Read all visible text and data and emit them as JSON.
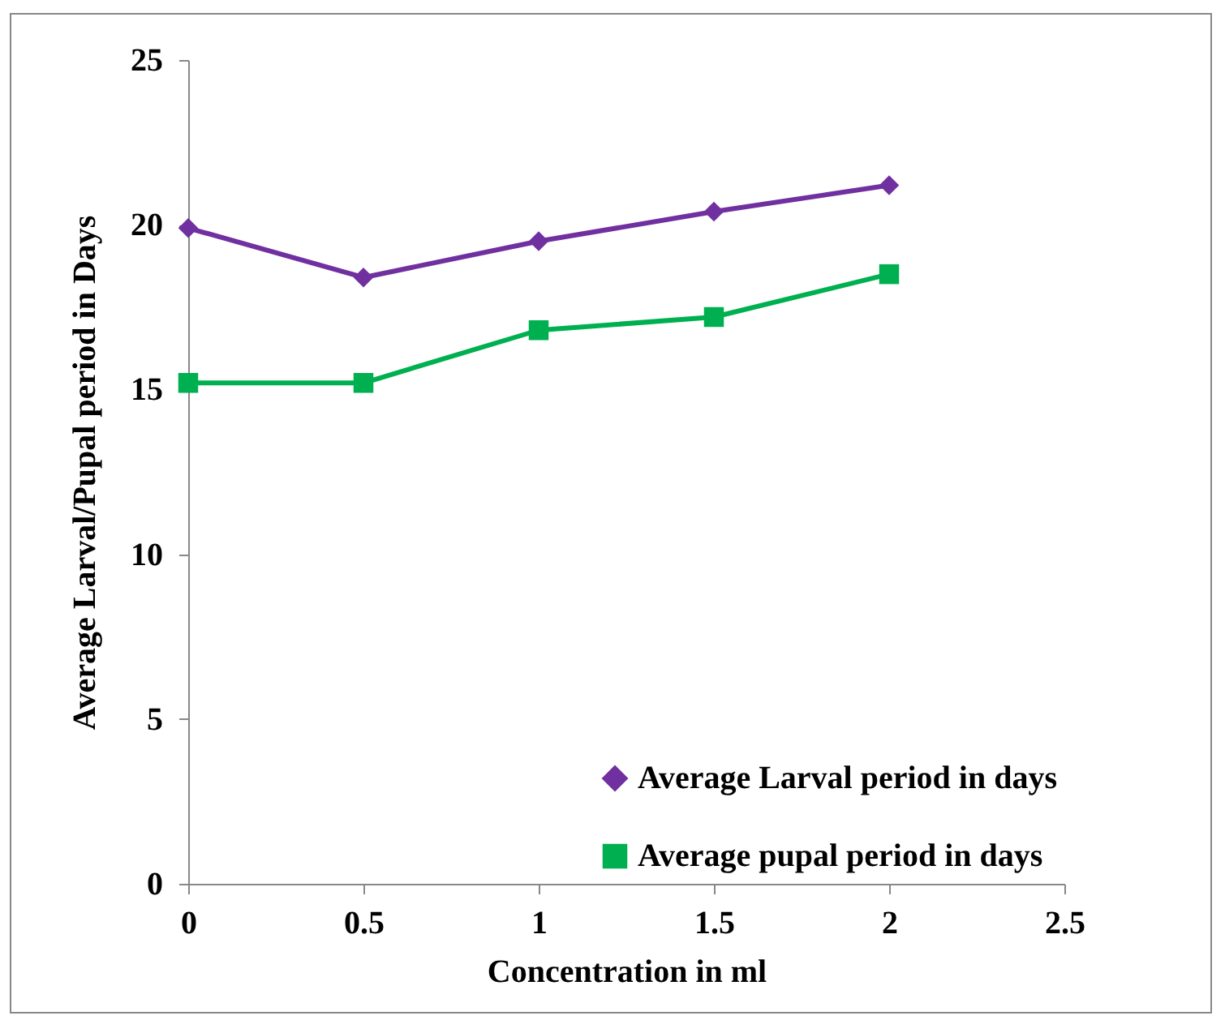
{
  "chart_data": {
    "type": "line",
    "xlabel": "Concentration  in ml",
    "ylabel": "Average Larval/Pupal period in Days",
    "x": [
      0,
      0.5,
      1,
      1.5,
      2
    ],
    "series": [
      {
        "name": "Average Larval period in days",
        "color": "#7030a0",
        "marker": "diamond",
        "values": [
          19.9,
          18.4,
          19.5,
          20.4,
          21.2
        ]
      },
      {
        "name": "Average pupal period in days",
        "color": "#00b050",
        "marker": "square",
        "values": [
          15.2,
          15.2,
          16.8,
          17.2,
          18.5
        ]
      }
    ],
    "xlim": [
      0,
      2.5
    ],
    "xticks": [
      0,
      0.5,
      1,
      1.5,
      2,
      2.5
    ],
    "ylim": [
      0,
      25
    ],
    "yticks": [
      0,
      5,
      10,
      15,
      20,
      25
    ],
    "grid": false,
    "legend": "bottom right",
    "line_style": "solid"
  }
}
